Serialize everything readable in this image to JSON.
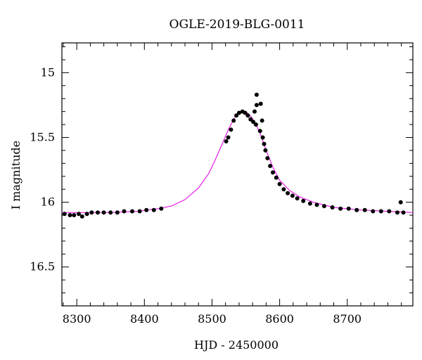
{
  "chart_data": {
    "type": "scatter",
    "title": "OGLE-2019-BLG-0011",
    "xlabel": "HJD - 2450000",
    "ylabel": "I magnitude",
    "xlim": [
      8278,
      8797
    ],
    "ylim": [
      16.8,
      14.77
    ],
    "y_inverted": true,
    "x_ticks": [
      8300,
      8400,
      8500,
      8600,
      8700
    ],
    "y_ticks": [
      15,
      15.5,
      16,
      16.5
    ],
    "grid": false,
    "colors": {
      "points": "#000000",
      "model": "#e81ee8",
      "axes": "#000000"
    },
    "series": [
      {
        "type": "scatter",
        "points": [
          [
            8282,
            16.09
          ],
          [
            8290,
            16.1
          ],
          [
            8296,
            16.1
          ],
          [
            8303,
            16.09
          ],
          [
            8308,
            16.11
          ],
          [
            8315,
            16.09
          ],
          [
            8322,
            16.08
          ],
          [
            8331,
            16.08
          ],
          [
            8340,
            16.08
          ],
          [
            8350,
            16.08
          ],
          [
            8360,
            16.08
          ],
          [
            8370,
            16.07
          ],
          [
            8382,
            16.07
          ],
          [
            8393,
            16.07
          ],
          [
            8403,
            16.06
          ],
          [
            8414,
            16.06
          ],
          [
            8425,
            16.05
          ],
          [
            8521,
            15.53
          ],
          [
            8524,
            15.5
          ],
          [
            8528,
            15.44
          ],
          [
            8532,
            15.37
          ],
          [
            8536,
            15.33
          ],
          [
            8540,
            15.31
          ],
          [
            8545,
            15.3
          ],
          [
            8549,
            15.31
          ],
          [
            8553,
            15.33
          ],
          [
            8557,
            15.36
          ],
          [
            8561,
            15.38
          ],
          [
            8565,
            15.4
          ],
          [
            8563,
            15.3
          ],
          [
            8566,
            15.17
          ],
          [
            8566,
            15.25
          ],
          [
            8572,
            15.24
          ],
          [
            8574,
            15.37
          ],
          [
            8571,
            15.45
          ],
          [
            8575,
            15.5
          ],
          [
            8577,
            15.55
          ],
          [
            8579,
            15.6
          ],
          [
            8582,
            15.66
          ],
          [
            8586,
            15.72
          ],
          [
            8590,
            15.77
          ],
          [
            8595,
            15.81
          ],
          [
            8600,
            15.86
          ],
          [
            8606,
            15.9
          ],
          [
            8612,
            15.93
          ],
          [
            8619,
            15.95
          ],
          [
            8626,
            15.97
          ],
          [
            8635,
            15.99
          ],
          [
            8645,
            16.01
          ],
          [
            8655,
            16.02
          ],
          [
            8666,
            16.03
          ],
          [
            8678,
            16.04
          ],
          [
            8690,
            16.05
          ],
          [
            8702,
            16.05
          ],
          [
            8714,
            16.06
          ],
          [
            8726,
            16.06
          ],
          [
            8738,
            16.07
          ],
          [
            8750,
            16.07
          ],
          [
            8762,
            16.07
          ],
          [
            8774,
            16.08
          ],
          [
            8779,
            16.0
          ],
          [
            8783,
            16.08
          ]
        ]
      },
      {
        "type": "line",
        "points": [
          [
            8278,
            16.08
          ],
          [
            8300,
            16.08
          ],
          [
            8350,
            16.08
          ],
          [
            8390,
            16.07
          ],
          [
            8420,
            16.05
          ],
          [
            8440,
            16.03
          ],
          [
            8460,
            15.98
          ],
          [
            8480,
            15.89
          ],
          [
            8495,
            15.78
          ],
          [
            8505,
            15.67
          ],
          [
            8515,
            15.55
          ],
          [
            8525,
            15.43
          ],
          [
            8533,
            15.35
          ],
          [
            8540,
            15.31
          ],
          [
            8546,
            15.3
          ],
          [
            8552,
            15.31
          ],
          [
            8558,
            15.34
          ],
          [
            8565,
            15.4
          ],
          [
            8572,
            15.48
          ],
          [
            8580,
            15.6
          ],
          [
            8590,
            15.73
          ],
          [
            8600,
            15.83
          ],
          [
            8615,
            15.91
          ],
          [
            8630,
            15.96
          ],
          [
            8650,
            16.0
          ],
          [
            8680,
            16.04
          ],
          [
            8720,
            16.06
          ],
          [
            8760,
            16.07
          ],
          [
            8797,
            16.08
          ]
        ]
      }
    ]
  }
}
